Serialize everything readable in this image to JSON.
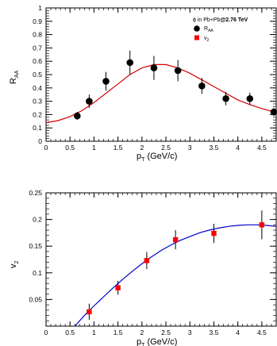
{
  "chart_data": [
    {
      "type": "scatter",
      "panel": "top",
      "xlabel": {
        "main": "p",
        "sub": "T",
        "tail": " (GeV/c)"
      },
      "ylabel": {
        "main": "R",
        "sub": "AA"
      },
      "xlim": [
        0,
        4.8
      ],
      "ylim": [
        0,
        1
      ],
      "x_ticks": [
        0,
        0.5,
        1,
        1.5,
        2,
        2.5,
        3,
        3.5,
        4,
        4.5
      ],
      "x_tick_labels": [
        "0",
        "0.5",
        "1",
        "1.5",
        "2",
        "2.5",
        "3",
        "3.5",
        "4",
        "4.5"
      ],
      "y_ticks": [
        0,
        0.1,
        0.2,
        0.3,
        0.4,
        0.5,
        0.6,
        0.7,
        0.8,
        0.9,
        1
      ],
      "y_tick_labels": [
        "0",
        "0.1",
        "0.2",
        "0.3",
        "0.4",
        "0.5",
        "0.6",
        "0.7",
        "0.8",
        "0.9",
        "1"
      ],
      "grid": false,
      "legend": {
        "placement": "top-right",
        "header_pre": "ϕ in Pb+Pb",
        "header_bold": "@2.76 TeV",
        "entries": [
          {
            "main": "R",
            "sub": "AA",
            "marker": "circle",
            "color": "#000000"
          },
          {
            "main": "v",
            "sub": "2",
            "marker": "square",
            "color": "#ff0000"
          }
        ]
      },
      "series": [
        {
          "name": "RAA",
          "marker": "circle",
          "color": "#000000",
          "points": [
            {
              "x": 0.65,
              "y": 0.19,
              "err": 0.03
            },
            {
              "x": 0.9,
              "y": 0.3,
              "err": 0.05
            },
            {
              "x": 1.25,
              "y": 0.45,
              "err": 0.07
            },
            {
              "x": 1.75,
              "y": 0.59,
              "err": 0.09
            },
            {
              "x": 2.25,
              "y": 0.55,
              "err": 0.09
            },
            {
              "x": 2.75,
              "y": 0.53,
              "err": 0.08
            },
            {
              "x": 3.25,
              "y": 0.415,
              "err": 0.06
            },
            {
              "x": 3.75,
              "y": 0.32,
              "err": 0.05
            },
            {
              "x": 4.25,
              "y": 0.32,
              "err": 0.045
            },
            {
              "x": 4.75,
              "y": 0.22,
              "err": 0.03
            }
          ]
        }
      ],
      "fit_curve": {
        "color": "#d40000",
        "x": [
          0.0,
          0.25,
          0.5,
          0.75,
          1.0,
          1.25,
          1.5,
          1.75,
          2.0,
          2.25,
          2.5,
          2.75,
          3.0,
          3.25,
          3.5,
          3.75,
          4.0,
          4.25,
          4.5,
          4.75,
          4.8
        ],
        "y": [
          0.14,
          0.155,
          0.185,
          0.23,
          0.29,
          0.36,
          0.43,
          0.5,
          0.55,
          0.575,
          0.575,
          0.55,
          0.51,
          0.46,
          0.41,
          0.36,
          0.31,
          0.275,
          0.245,
          0.22,
          0.215
        ]
      }
    },
    {
      "type": "scatter",
      "panel": "bottom",
      "xlabel": {
        "main": "p",
        "sub": "T",
        "tail": " (GeV/c)"
      },
      "ylabel": {
        "main": "v",
        "sub": "2"
      },
      "xlim": [
        0,
        4.8
      ],
      "ylim": [
        0,
        0.25
      ],
      "x_ticks": [
        0,
        0.5,
        1,
        1.5,
        2,
        2.5,
        3,
        3.5,
        4,
        4.5
      ],
      "x_tick_labels": [
        "0",
        "0.5",
        "1",
        "1.5",
        "2",
        "2.5",
        "3",
        "3.5",
        "4",
        "4.5"
      ],
      "y_ticks": [
        0.05,
        0.1,
        0.15,
        0.2,
        0.25
      ],
      "y_tick_labels": [
        "0.05",
        "0.1",
        "0.15",
        "0.2",
        "0.25"
      ],
      "grid": false,
      "series": [
        {
          "name": "v2",
          "marker": "square",
          "color": "#ff0000",
          "points": [
            {
              "x": 0.9,
              "y": 0.027,
              "err": 0.015
            },
            {
              "x": 1.5,
              "y": 0.072,
              "err": 0.013
            },
            {
              "x": 2.1,
              "y": 0.123,
              "err": 0.016
            },
            {
              "x": 2.7,
              "y": 0.162,
              "err": 0.018
            },
            {
              "x": 3.5,
              "y": 0.174,
              "err": 0.018
            },
            {
              "x": 4.5,
              "y": 0.19,
              "err": 0.027
            }
          ]
        }
      ],
      "fit_curve": {
        "color": "#0000cc",
        "x": [
          0.6,
          0.8,
          1.0,
          1.2,
          1.4,
          1.6,
          1.8,
          2.0,
          2.2,
          2.4,
          2.6,
          2.8,
          3.0,
          3.2,
          3.4,
          3.6,
          3.8,
          4.0,
          4.2,
          4.4,
          4.6,
          4.8
        ],
        "y": [
          0.0,
          0.02,
          0.038,
          0.055,
          0.072,
          0.088,
          0.103,
          0.117,
          0.13,
          0.142,
          0.152,
          0.161,
          0.168,
          0.175,
          0.18,
          0.184,
          0.187,
          0.189,
          0.19,
          0.19,
          0.189,
          0.187
        ]
      }
    }
  ]
}
